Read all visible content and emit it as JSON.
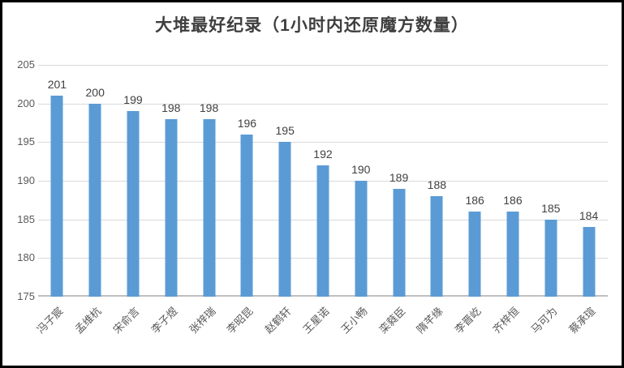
{
  "window": {
    "background_color": "#ffffff",
    "frame_border_color": "#000000"
  },
  "chart_data": {
    "type": "bar",
    "title": "大堆最好纪录（1小时内还原魔方数量）",
    "categories": [
      "冯子宸",
      "孟维杭",
      "宋俞言",
      "李子煜",
      "张梓瑞",
      "李昭昆",
      "赵鹤轩",
      "王星诺",
      "王小畅",
      "栾蕤臣",
      "隋芊缘",
      "李晋屹",
      "齐梓恒",
      "马可为",
      "蔡承瑄"
    ],
    "values": [
      201,
      200,
      199,
      198,
      198,
      196,
      195,
      192,
      190,
      189,
      188,
      186,
      186,
      185,
      184
    ],
    "data_labels": [
      201,
      200,
      199,
      198,
      198,
      196,
      195,
      192,
      190,
      189,
      188,
      186,
      186,
      185,
      184
    ],
    "xlabel": "",
    "ylabel": "",
    "ylim": [
      175,
      205
    ],
    "yticks": [
      175,
      180,
      185,
      190,
      195,
      200,
      205
    ],
    "grid": "horizontal",
    "legend": "none",
    "colors": {
      "bar": "#5b9bd5",
      "gridline": "#d9d9d9",
      "axis_labels": "#595959",
      "value_labels": "#404040",
      "title": "#3f3f3f"
    }
  }
}
